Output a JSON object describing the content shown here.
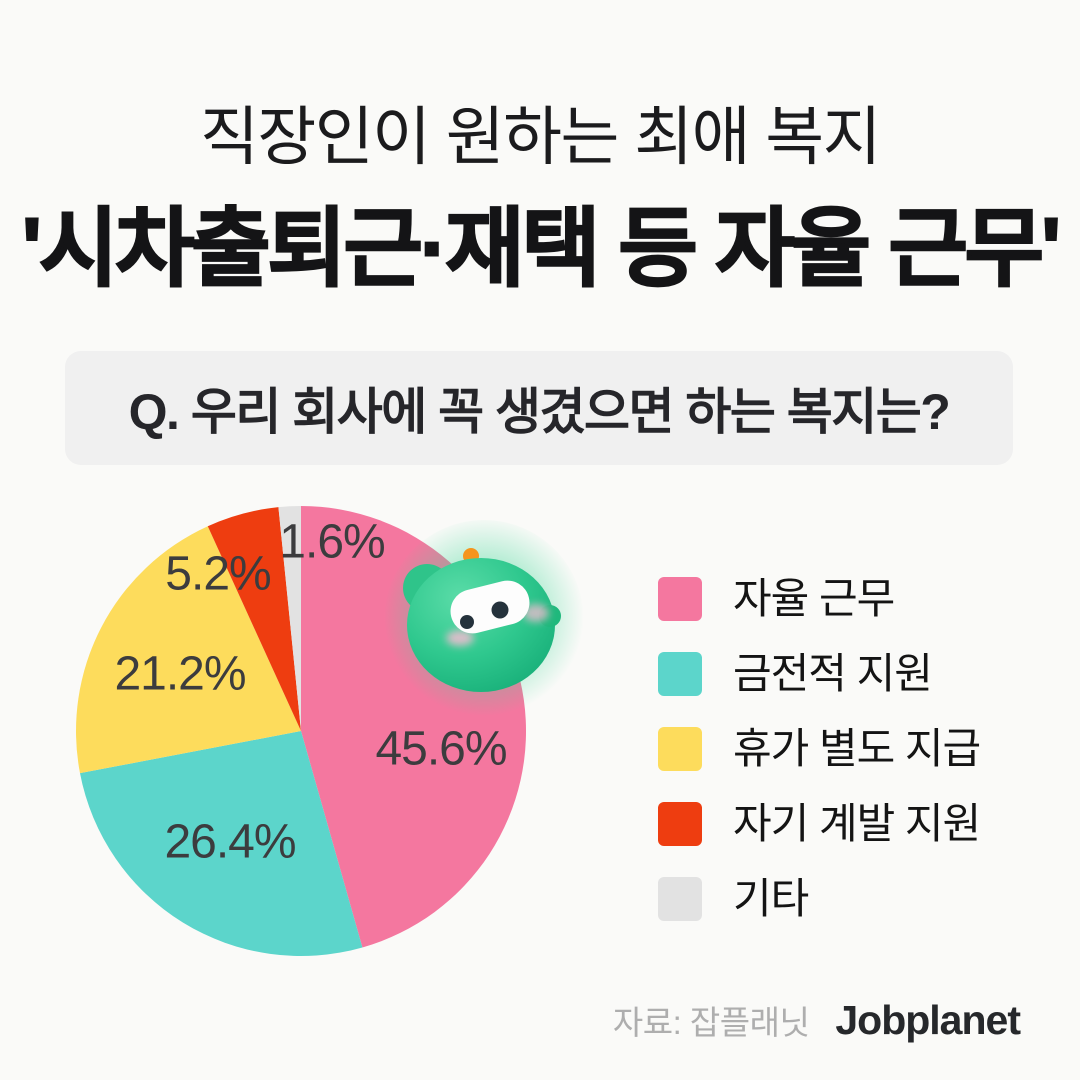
{
  "title": {
    "line1": "직장인이 원하는 최애 복지",
    "line2": "'시차출퇴근·재택 등 자율 근무'"
  },
  "question": {
    "label": "Q. 우리 회사에 꼭 생겼으면 하는 복지는?"
  },
  "chart_data": {
    "type": "pie",
    "title": "Q. 우리 회사에 꼭 생겼으면 하는 복지는?",
    "start_angle_deg": 0,
    "direction": "clockwise",
    "legend_position": "right",
    "slices": [
      {
        "label": "자율 근무",
        "value": 45.6,
        "value_label": "45.6%",
        "color": "#F4779F"
      },
      {
        "label": "금전적 지원",
        "value": 26.4,
        "value_label": "26.4%",
        "color": "#5CD5CB"
      },
      {
        "label": "휴가 별도 지급",
        "value": 21.2,
        "value_label": "21.2%",
        "color": "#FDDC5C"
      },
      {
        "label": "자기 계발 지원",
        "value": 5.2,
        "value_label": "5.2%",
        "color": "#EE3D10"
      },
      {
        "label": "기타",
        "value": 1.6,
        "value_label": "1.6%",
        "color": "#E2E2E2"
      }
    ]
  },
  "mascot": {
    "description": "jobplanet green robot mascot",
    "body_color": "#2FC88E",
    "body_light": "#5BDCA8",
    "body_dark": "#17AE78",
    "antenna_ball_color": "#F5941D",
    "antenna_stick_color": "#46555D",
    "mask_color": "#FDFDFD",
    "eye_color": "#25323C",
    "cheek_color": "#F3BCD2",
    "glow_color": "#3FD696"
  },
  "footer": {
    "source_label": "자료: 잡플래닛",
    "brand": "Jobplanet"
  },
  "colors": {
    "background": "#FAFAF8",
    "question_box": "#F0F0F0",
    "title_text": "#141416",
    "pie_label_text": "#3C3C3E",
    "legend_text": "#141414",
    "footer_source_text": "#AEAEAE",
    "footer_brand_text": "#26282B"
  }
}
